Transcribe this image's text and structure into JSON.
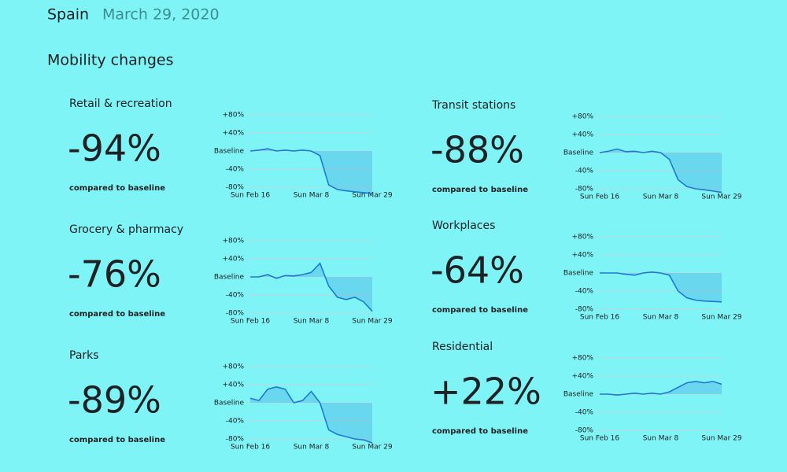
{
  "header": {
    "country": "Spain",
    "date": "March 29, 2020",
    "section": "Mobility changes"
  },
  "chart_data": [
    {
      "type": "line",
      "title": "Retail & recreation",
      "headline": "-94%",
      "caption": "compared to baseline",
      "color": "#1f78d1",
      "x": [
        "Feb 16",
        "Feb 19",
        "Feb 22",
        "Feb 25",
        "Feb 28",
        "Mar 2",
        "Mar 5",
        "Mar 8",
        "Mar 11",
        "Mar 14",
        "Mar 17",
        "Mar 20",
        "Mar 23",
        "Mar 26",
        "Mar 29"
      ],
      "values": [
        0,
        2,
        5,
        0,
        2,
        0,
        2,
        0,
        -10,
        -75,
        -85,
        -88,
        -90,
        -92,
        -94
      ],
      "ylim": [
        -80,
        80
      ],
      "yticks": [
        {
          "value": 80,
          "label": "+80%"
        },
        {
          "value": 40,
          "label": "+40%"
        },
        {
          "value": 0,
          "label": "Baseline"
        },
        {
          "value": -40,
          "label": "-40%"
        },
        {
          "value": -80,
          "label": "-80%"
        }
      ],
      "xticks": [
        {
          "value": "Feb 16",
          "label": "Sun Feb 16"
        },
        {
          "value": "Mar 8",
          "label": "Sun Mar 8"
        },
        {
          "value": "Mar 29",
          "label": "Sun Mar 29"
        }
      ],
      "grid": true
    },
    {
      "type": "line",
      "title": "Grocery & pharmacy",
      "headline": "-76%",
      "caption": "compared to baseline",
      "color": "#1f78d1",
      "x": [
        "Feb 16",
        "Feb 19",
        "Feb 22",
        "Feb 25",
        "Feb 28",
        "Mar 2",
        "Mar 5",
        "Mar 8",
        "Mar 11",
        "Mar 14",
        "Mar 17",
        "Mar 20",
        "Mar 23",
        "Mar 26",
        "Mar 29"
      ],
      "values": [
        0,
        0,
        5,
        -3,
        3,
        2,
        5,
        10,
        30,
        -20,
        -45,
        -50,
        -45,
        -55,
        -76
      ],
      "ylim": [
        -80,
        80
      ],
      "yticks": [
        {
          "value": 80,
          "label": "+80%"
        },
        {
          "value": 40,
          "label": "+40%"
        },
        {
          "value": 0,
          "label": "Baseline"
        },
        {
          "value": -40,
          "label": "-40%"
        },
        {
          "value": -80,
          "label": "-80%"
        }
      ],
      "xticks": [
        {
          "value": "Feb 16",
          "label": "Sun Feb 16"
        },
        {
          "value": "Mar 8",
          "label": "Sun Mar 8"
        },
        {
          "value": "Mar 29",
          "label": "Sun Mar 29"
        }
      ],
      "grid": true
    },
    {
      "type": "line",
      "title": "Parks",
      "headline": "-89%",
      "caption": "compared to baseline",
      "color": "#1f78d1",
      "x": [
        "Feb 16",
        "Feb 19",
        "Feb 22",
        "Feb 25",
        "Feb 28",
        "Mar 2",
        "Mar 5",
        "Mar 8",
        "Mar 11",
        "Mar 14",
        "Mar 17",
        "Mar 20",
        "Mar 23",
        "Mar 26",
        "Mar 29"
      ],
      "values": [
        10,
        5,
        30,
        35,
        30,
        0,
        5,
        25,
        0,
        -60,
        -70,
        -75,
        -80,
        -82,
        -89
      ],
      "ylim": [
        -80,
        80
      ],
      "yticks": [
        {
          "value": 80,
          "label": "+80%"
        },
        {
          "value": 40,
          "label": "+40%"
        },
        {
          "value": 0,
          "label": "Baseline"
        },
        {
          "value": -40,
          "label": "-40%"
        },
        {
          "value": -80,
          "label": "-80%"
        }
      ],
      "xticks": [
        {
          "value": "Feb 16",
          "label": "Sun Feb 16"
        },
        {
          "value": "Mar 8",
          "label": "Sun Mar 8"
        },
        {
          "value": "Mar 29",
          "label": "Sun Mar 29"
        }
      ],
      "grid": true
    },
    {
      "type": "line",
      "title": "Transit stations",
      "headline": "-88%",
      "caption": "compared to baseline",
      "color": "#1f78d1",
      "x": [
        "Feb 16",
        "Feb 19",
        "Feb 22",
        "Feb 25",
        "Feb 28",
        "Mar 2",
        "Mar 5",
        "Mar 8",
        "Mar 11",
        "Mar 14",
        "Mar 17",
        "Mar 20",
        "Mar 23",
        "Mar 26",
        "Mar 29"
      ],
      "values": [
        0,
        3,
        8,
        2,
        3,
        0,
        3,
        0,
        -15,
        -60,
        -75,
        -80,
        -82,
        -85,
        -88
      ],
      "ylim": [
        -80,
        80
      ],
      "yticks": [
        {
          "value": 80,
          "label": "+80%"
        },
        {
          "value": 40,
          "label": "+40%"
        },
        {
          "value": 0,
          "label": "Baseline"
        },
        {
          "value": -40,
          "label": "-40%"
        },
        {
          "value": -80,
          "label": "-80%"
        }
      ],
      "xticks": [
        {
          "value": "Feb 16",
          "label": "Sun Feb 16"
        },
        {
          "value": "Mar 8",
          "label": "Sun Mar 8"
        },
        {
          "value": "Mar 29",
          "label": "Sun Mar 29"
        }
      ],
      "grid": true
    },
    {
      "type": "line",
      "title": "Workplaces",
      "headline": "-64%",
      "caption": "compared to baseline",
      "color": "#1f78d1",
      "x": [
        "Feb 16",
        "Feb 19",
        "Feb 22",
        "Feb 25",
        "Feb 28",
        "Mar 2",
        "Mar 5",
        "Mar 8",
        "Mar 11",
        "Mar 14",
        "Mar 17",
        "Mar 20",
        "Mar 23",
        "Mar 26",
        "Mar 29"
      ],
      "values": [
        0,
        0,
        0,
        -3,
        -5,
        0,
        2,
        0,
        -5,
        -40,
        -55,
        -60,
        -62,
        -63,
        -64
      ],
      "ylim": [
        -80,
        80
      ],
      "yticks": [
        {
          "value": 80,
          "label": "+80%"
        },
        {
          "value": 40,
          "label": "+40%"
        },
        {
          "value": 0,
          "label": "Baseline"
        },
        {
          "value": -40,
          "label": "-40%"
        },
        {
          "value": -80,
          "label": "-80%"
        }
      ],
      "xticks": [
        {
          "value": "Feb 16",
          "label": "Sun Feb 16"
        },
        {
          "value": "Mar 8",
          "label": "Sun Mar 8"
        },
        {
          "value": "Mar 29",
          "label": "Sun Mar 29"
        }
      ],
      "grid": true
    },
    {
      "type": "line",
      "title": "Residential",
      "headline": "+22%",
      "caption": "compared to baseline",
      "color": "#1f78d1",
      "x": [
        "Feb 16",
        "Feb 19",
        "Feb 22",
        "Feb 25",
        "Feb 28",
        "Mar 2",
        "Mar 5",
        "Mar 8",
        "Mar 11",
        "Mar 14",
        "Mar 17",
        "Mar 20",
        "Mar 23",
        "Mar 26",
        "Mar 29"
      ],
      "values": [
        0,
        0,
        -2,
        0,
        2,
        0,
        2,
        0,
        5,
        15,
        25,
        28,
        25,
        28,
        22
      ],
      "ylim": [
        -80,
        80
      ],
      "yticks": [
        {
          "value": 80,
          "label": "+80%"
        },
        {
          "value": 40,
          "label": "+40%"
        },
        {
          "value": 0,
          "label": "Baseline"
        },
        {
          "value": -40,
          "label": "-40%"
        },
        {
          "value": -80,
          "label": "-80%"
        }
      ],
      "xticks": [
        {
          "value": "Feb 16",
          "label": "Sun Feb 16"
        },
        {
          "value": "Mar 8",
          "label": "Sun Mar 8"
        },
        {
          "value": "Mar 29",
          "label": "Sun Mar 29"
        }
      ],
      "grid": true
    }
  ]
}
